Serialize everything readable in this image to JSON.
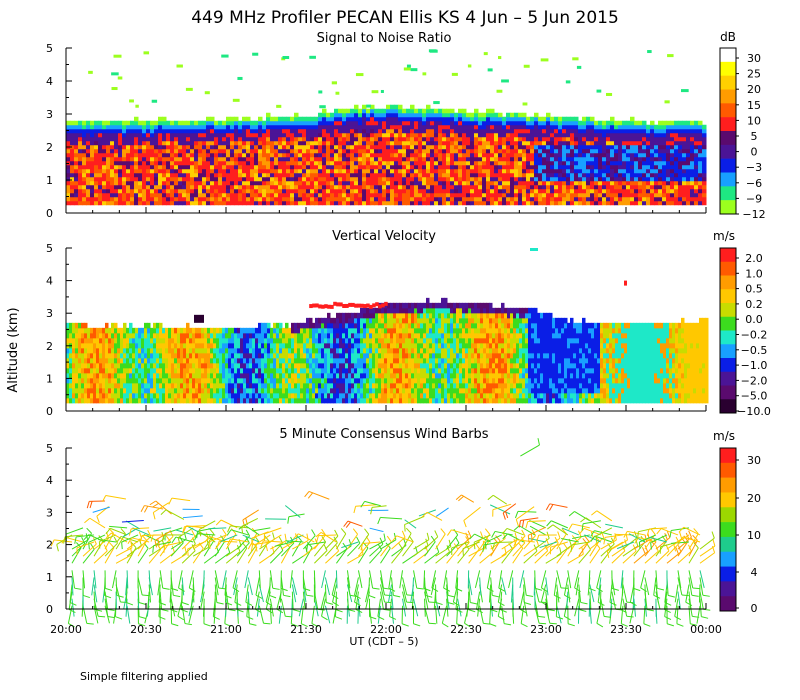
{
  "figure": {
    "title": "449 MHz Profiler PECAN Ellis KS   4 Jun –  5 Jun 2015",
    "ylabel": "Altitude (km)",
    "xlabel": "UT  (CDT – 5)",
    "note": "Simple filtering applied"
  },
  "chart_data": [
    {
      "type": "heatmap",
      "title": "Signal to Noise Ratio",
      "xlabel": "UT  (CDT – 5)",
      "ylabel": "Altitude (km)",
      "x_ticks": [
        "20:00",
        "20:30",
        "21:00",
        "21:30",
        "22:00",
        "22:30",
        "23:00",
        "23:30",
        "00:00"
      ],
      "xlim_hours": [
        20,
        24
      ],
      "y_ticks": [
        0,
        1,
        2,
        3,
        4,
        5
      ],
      "ylim": [
        0,
        5
      ],
      "colorbar": {
        "unit": "dB",
        "labels": [
          "30",
          "25",
          "20",
          "15",
          "10",
          "5",
          "0",
          "−3",
          "−6",
          "−9",
          "−12"
        ],
        "colors": [
          "#ffffff",
          "#ffff00",
          "#ffd000",
          "#ff9c00",
          "#ff5a00",
          "#ff1e1e",
          "#5a0a6e",
          "#4b1496",
          "#0a1ee6",
          "#18a0ff",
          "#1ee882",
          "#9cff1e"
        ]
      },
      "echo_top_km": [
        2.7,
        2.72,
        2.75,
        2.78,
        2.82,
        2.9,
        3.1,
        3.2,
        3.1,
        3.0,
        2.95,
        2.85,
        2.75,
        2.7,
        2.72
      ]
    },
    {
      "type": "heatmap",
      "title": "Vertical Velocity",
      "xlabel": "UT  (CDT – 5)",
      "ylabel": "Altitude (km)",
      "x_ticks": [
        "20:00",
        "20:30",
        "21:00",
        "21:30",
        "22:00",
        "22:30",
        "23:00",
        "23:30",
        "00:00"
      ],
      "xlim_hours": [
        20,
        24
      ],
      "y_ticks": [
        0,
        1,
        2,
        3,
        4,
        5
      ],
      "ylim": [
        0,
        5
      ],
      "colorbar": {
        "unit": "m/s",
        "labels": [
          "2.0",
          "1.0",
          "0.5",
          "0.2",
          "0.0",
          "−0.2",
          "−0.5",
          "−1.0",
          "−2.0",
          "−5.0",
          "−10.0"
        ],
        "colors": [
          "#ff1e1e",
          "#ff5a00",
          "#ff9c00",
          "#ffc800",
          "#c8dc00",
          "#3cdc1e",
          "#1ee8c8",
          "#18a0ff",
          "#0a1ee6",
          "#4b1496",
          "#5a0a6e",
          "#2a0030"
        ]
      },
      "echo_top_km": [
        2.6,
        2.55,
        2.55,
        2.5,
        2.5,
        2.6,
        2.9,
        3.2,
        3.3,
        3.2,
        3.1,
        2.7,
        2.6,
        2.6,
        2.75
      ]
    },
    {
      "type": "scatter",
      "subtype": "wind_barbs",
      "title": "5 Minute Consensus Wind Barbs",
      "xlabel": "UT  (CDT – 5)",
      "ylabel": "Altitude (km)",
      "x_ticks": [
        "20:00",
        "20:30",
        "21:00",
        "21:30",
        "22:00",
        "22:30",
        "23:00",
        "23:30",
        "00:00"
      ],
      "xlim_hours": [
        20,
        24
      ],
      "y_ticks": [
        0,
        1,
        2,
        3,
        4,
        5
      ],
      "ylim": [
        0,
        5
      ],
      "colorbar": {
        "unit": "m/s",
        "labels": [
          "30",
          "20",
          "10",
          "4",
          "0"
        ],
        "colors": [
          "#ff1e1e",
          "#ff5a00",
          "#ff9c00",
          "#ffc800",
          "#9cd800",
          "#3cdc1e",
          "#1ecc8c",
          "#18a0ff",
          "#0a1ee6",
          "#4b1496",
          "#5a0a6e"
        ]
      }
    }
  ]
}
